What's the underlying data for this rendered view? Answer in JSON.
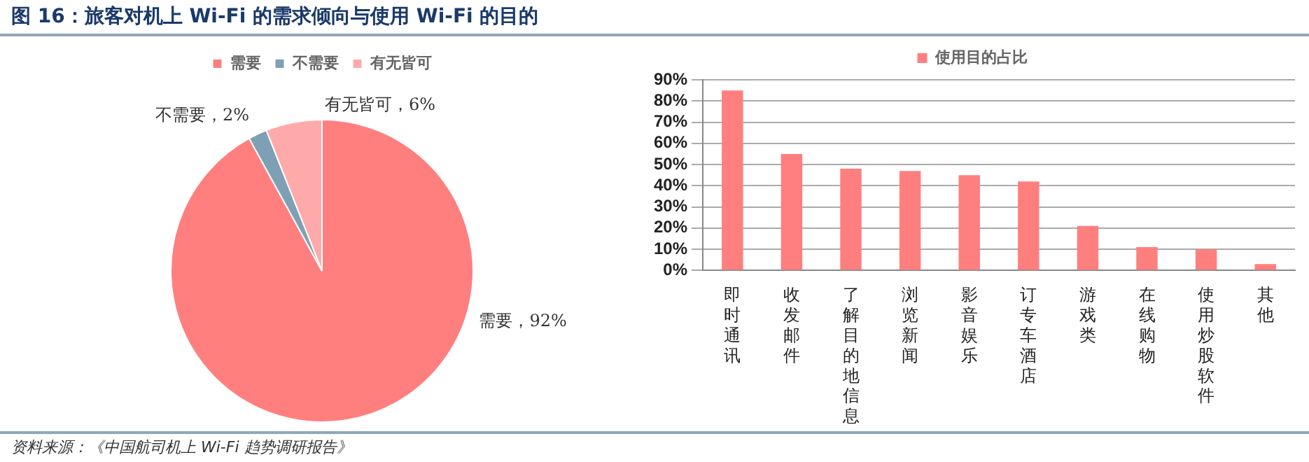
{
  "chart_data": [
    {
      "type": "pie",
      "title": "图 16：旅客对机上 Wi-Fi 的需求倾向与使用 Wi-Fi 的目的",
      "categories": [
        "需要",
        "不需要",
        "有无皆可"
      ],
      "values": [
        92,
        2,
        6
      ],
      "colors": [
        "#ff7f7f",
        "#7f9fb5",
        "#ffaaaa"
      ],
      "value_labels": [
        "需要，92%",
        "不需要，2%",
        "有无皆可，6%"
      ],
      "legend": "top",
      "annotations": [
        "资料来源：《中国航司机上 Wi-Fi 趋势调研报告》"
      ]
    },
    {
      "type": "bar",
      "categories": [
        "即时通讯",
        "收发邮件",
        "了解目的地信息",
        "浏览新闻",
        "影音娱乐",
        "订专车酒店",
        "游戏类",
        "在线购物",
        "使用炒股软件",
        "其他"
      ],
      "series": [
        {
          "name": "使用目的占比",
          "color": "#ff7f7f",
          "values": [
            85,
            55,
            48,
            47,
            45,
            42,
            21,
            11,
            10,
            3
          ]
        }
      ],
      "ylim": [
        0,
        90
      ],
      "yticks": [
        {
          "value": 0,
          "label": "0%"
        },
        {
          "value": 10,
          "label": "10%"
        },
        {
          "value": 20,
          "label": "20%"
        },
        {
          "value": 30,
          "label": "30%"
        },
        {
          "value": 40,
          "label": "40%"
        },
        {
          "value": 50,
          "label": "50%"
        },
        {
          "value": 60,
          "label": "60%"
        },
        {
          "value": 70,
          "label": "70%"
        },
        {
          "value": 80,
          "label": "80%"
        },
        {
          "value": 90,
          "label": "90%"
        }
      ],
      "grid": "y",
      "legend": "top"
    }
  ]
}
